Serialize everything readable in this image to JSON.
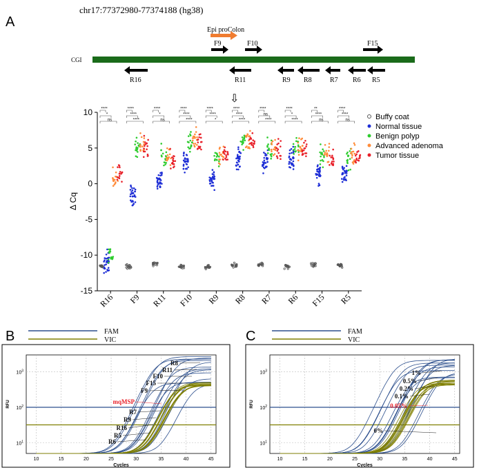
{
  "figure": {
    "panel_a": {
      "letter": "A",
      "locus": "chr17:77372980-77374188 (hg38)",
      "cgi_label": "CGI",
      "epi_label": "Epi proColon",
      "forward_primers": [
        "F9",
        "F10",
        "F15"
      ],
      "reverse_primers": [
        "R16",
        "R11",
        "R9",
        "R8",
        "R7",
        "R6",
        "R5"
      ],
      "arrow_glyph": "⇩"
    },
    "panel_b": {
      "letter": "B",
      "legend": [
        "FAM",
        "VIC"
      ],
      "xlabel": "Cycles",
      "ylabel": "RFU",
      "callout": "mqMSP"
    },
    "panel_c": {
      "letter": "C",
      "legend": [
        "FAM",
        "VIC"
      ],
      "xlabel": "Cycles",
      "ylabel": "RFU",
      "callout": "0.05%"
    }
  },
  "colors": {
    "cgi": "#1a6b1a",
    "epi": "#f07c30",
    "fam": "#2b4e8c",
    "vic": "#7f7f00",
    "buffy": "#555555",
    "normal": "#1f2fd6",
    "benign": "#2ecc2e",
    "advanced": "#ff8c3a",
    "tumor": "#e8212a",
    "callout_red": "#e8212a"
  },
  "chart_data": [
    {
      "type": "scatter",
      "title": "",
      "xlabel": "",
      "ylabel": "Δ Cq",
      "ylim": [
        -15,
        10
      ],
      "yticks": [
        10,
        5,
        0,
        -5,
        -10,
        -15
      ],
      "categories": [
        "R16",
        "F9",
        "R11",
        "F10",
        "R9",
        "R8",
        "R7",
        "R6",
        "F15",
        "R5"
      ],
      "legend_position": "right",
      "significance_labels": [
        "****",
        "*",
        "ns",
        "****",
        "****",
        "****",
        "****",
        "*",
        "ns",
        "****",
        "****",
        "****",
        "****",
        "****",
        "*",
        "****",
        "****",
        "****",
        "****",
        "ns",
        "****",
        "****",
        "*",
        "****",
        "**",
        "****",
        "ns",
        "****",
        "****",
        "ns",
        "****",
        "****",
        "ns"
      ],
      "series": [
        {
          "name": "Buffy coat",
          "marker": "open-circle",
          "color": "#555555",
          "medians": [
            -11.5,
            -11.6,
            -11.2,
            -11.6,
            -11.7,
            -11.4,
            -11.3,
            -11.6,
            -11.3,
            -11.4
          ]
        },
        {
          "name": "Normal tissue",
          "marker": "circle",
          "color": "#1f2fd6",
          "medians": [
            -11.0,
            -1.5,
            0.5,
            3.0,
            0.5,
            3.5,
            3.0,
            3.5,
            1.5,
            1.5
          ]
        },
        {
          "name": "Benign polyp",
          "marker": "triangle",
          "color": "#2ecc2e",
          "medians": [
            -10.0,
            5.0,
            4.0,
            6.0,
            3.5,
            6.0,
            5.0,
            5.0,
            4.0,
            3.5
          ]
        },
        {
          "name": "Advanced adenoma",
          "marker": "square",
          "color": "#ff8c3a",
          "medians": [
            1.0,
            5.5,
            4.0,
            6.5,
            4.0,
            6.0,
            5.0,
            5.0,
            4.5,
            4.0
          ]
        },
        {
          "name": "Tumor  tissue",
          "marker": "diamond",
          "color": "#e8212a",
          "medians": [
            1.5,
            5.0,
            3.5,
            6.0,
            4.0,
            6.0,
            4.5,
            5.0,
            3.5,
            3.5
          ]
        }
      ]
    },
    {
      "type": "line",
      "title": "",
      "xlabel": "Cycles",
      "ylabel": "RFU",
      "xlim": [
        8,
        46
      ],
      "xticks": [
        10,
        15,
        20,
        25,
        30,
        35,
        40,
        45
      ],
      "yscale": "log",
      "ylim": [
        5,
        3000
      ],
      "yticks": [
        "10^1",
        "10^2",
        "10^3"
      ],
      "thresholds": [
        {
          "name": "FAM",
          "value": 100
        },
        {
          "name": "VIC",
          "value": 32
        }
      ],
      "curve_labels": [
        "R8",
        "R11",
        "F10",
        "F15",
        "F9",
        "mqMSP",
        "R7",
        "R9",
        "R16",
        "R5",
        "R6"
      ],
      "series": [
        {
          "name": "FAM",
          "color": "#2b4e8c",
          "ct_range": [
            29,
            37
          ],
          "plateau": [
            300,
            3000
          ]
        },
        {
          "name": "VIC",
          "color": "#7f7f00",
          "ct_range": [
            33,
            35
          ],
          "plateau": [
            400,
            500
          ]
        }
      ]
    },
    {
      "type": "line",
      "title": "",
      "xlabel": "Cycles",
      "ylabel": "RFU",
      "xlim": [
        8,
        46
      ],
      "xticks": [
        10,
        15,
        20,
        25,
        30,
        35,
        40,
        45
      ],
      "yscale": "log",
      "ylim": [
        5,
        3000
      ],
      "yticks": [
        "10^1",
        "10^2",
        "10^3"
      ],
      "thresholds": [
        {
          "name": "FAM",
          "value": 100
        },
        {
          "name": "VIC",
          "value": 32
        }
      ],
      "curve_labels": [
        "1%",
        "0.5%",
        "0.2%",
        "0.1%",
        "0.05%",
        "0%"
      ],
      "series": [
        {
          "name": "FAM",
          "color": "#2b4e8c",
          "ct_range": [
            29,
            38
          ],
          "plateau": [
            400,
            2500
          ]
        },
        {
          "name": "VIC",
          "color": "#7f7f00",
          "ct_range": [
            33,
            35
          ],
          "plateau": [
            400,
            600
          ]
        }
      ]
    }
  ]
}
